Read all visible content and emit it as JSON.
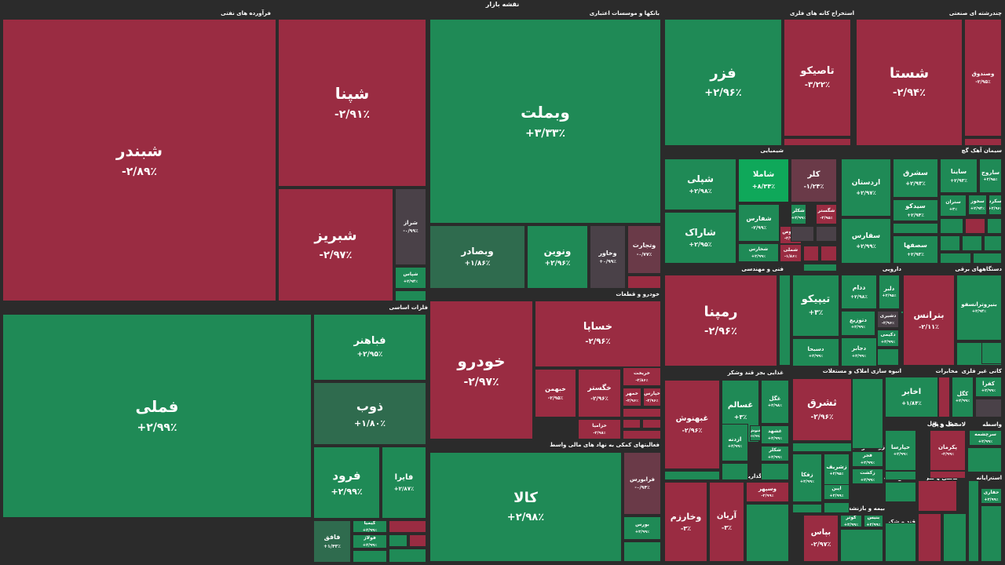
{
  "title": "نقشه بازار",
  "colors": {
    "red": "#9a2c42",
    "red_dark": "#7e2a3e",
    "red_muted": "#6a3a48",
    "green": "#1f8a56",
    "green_bright": "#0fa85a",
    "green_dark": "#2f6b4e",
    "neutral": "#4a4148",
    "separator": "#2b2b2b"
  },
  "sectors": [
    {
      "label": "فرآورده های نفتی"
    },
    {
      "label": "بانکها و موسسات اعتباری"
    },
    {
      "label": "استخراج کانه های فلزی"
    },
    {
      "label": "چندرشته ای صنعتی"
    },
    {
      "label": "شیمیایی"
    },
    {
      "label": "سیمان آهک گچ"
    },
    {
      "label": "فلزات اساسی"
    },
    {
      "label": "خودرو و قطعات"
    },
    {
      "label": "فنی و مهندسی"
    },
    {
      "label": "دارویی"
    },
    {
      "label": "دستگاههای برقی"
    },
    {
      "label": "غذایی بجز قند وشکر"
    },
    {
      "label": "انبوه سازی املاک و مستغلات"
    },
    {
      "label": "مخابرات"
    },
    {
      "label": "کانی غیر فلزی"
    },
    {
      "label": "فعالیتهای کمکی به نهاد های مالی واسط"
    },
    {
      "label": "سرمایه گذاریها"
    },
    {
      "label": "زراعت و خدمات وابسته"
    },
    {
      "label": "حمل و نقل"
    },
    {
      "label": "لاستیک و پل"
    },
    {
      "label": "واسطه"
    },
    {
      "label": "بیمه و بازنشستگی"
    },
    {
      "label": "ماشین آلات"
    },
    {
      "label": "کاشی و سر"
    },
    {
      "label": "رایانه"
    },
    {
      "label": "استخراج"
    },
    {
      "label": "قند و شکر"
    }
  ],
  "tiles": [
    {
      "name": "شبندر",
      "pct": "-۲/۸۹٪"
    },
    {
      "name": "شپنا",
      "pct": "-۲/۹۱٪"
    },
    {
      "name": "شبریز",
      "pct": "-۲/۹۷٪"
    },
    {
      "name": "شراز",
      "pct": "-۰/۹۹٪"
    },
    {
      "name": "شپاس",
      "pct": "+۲/۹۴٪"
    },
    {
      "name": "وبملت",
      "pct": "+۳/۳۳٪"
    },
    {
      "name": "وبصادر",
      "pct": "+۱/۸۶٪"
    },
    {
      "name": "ونوین",
      "pct": "+۲/۹۶٪"
    },
    {
      "name": "وخاور",
      "pct": "+۰/۹۹٪"
    },
    {
      "name": "وتجارت",
      "pct": "-۰/۷۷٪"
    },
    {
      "name": "فزر",
      "pct": "+۲/۹۶٪"
    },
    {
      "name": "تاصیکو",
      "pct": "-۳/۲۲٪"
    },
    {
      "name": "شستا",
      "pct": "-۲/۹۴٪"
    },
    {
      "name": "وصندوق",
      "pct": "-۲/۹۵٪"
    },
    {
      "name": "شپلی",
      "pct": "+۲/۹۸٪"
    },
    {
      "name": "شاملا",
      "pct": "+۸/۳۴٪"
    },
    {
      "name": "کلر",
      "pct": "-۱/۲۴٪"
    },
    {
      "name": "شاراک",
      "pct": "+۲/۹۵٪"
    },
    {
      "name": "شفارس",
      "pct": "-۲/۹۹٪"
    },
    {
      "name": "شکلر",
      "pct": "+۲/۹۹٪"
    },
    {
      "name": "شگستر",
      "pct": "-۲/۹۵٪"
    },
    {
      "name": "شدوص",
      "pct": "-۲/۹۹٪"
    },
    {
      "name": "شخارس",
      "pct": "+۲/۹۹٪"
    },
    {
      "name": "شملی",
      "pct": "-۱/۸۶٪"
    },
    {
      "name": "اردستان",
      "pct": "+۲/۹۷٪"
    },
    {
      "name": "سشرق",
      "pct": "+۲/۹۳٪"
    },
    {
      "name": "ساینا",
      "pct": "+۲/۹۳٪"
    },
    {
      "name": "ساروج",
      "pct": "+۲/۹۵٪"
    },
    {
      "name": "ستران",
      "pct": "+۳٪"
    },
    {
      "name": "سخوز",
      "pct": "+۲/۹۴٪"
    },
    {
      "name": "سکرد",
      "pct": "+۲/۹۶٪"
    },
    {
      "name": "سفارس",
      "pct": "+۲/۹۹٪"
    },
    {
      "name": "سیدکو",
      "pct": "+۲/۹۴٪"
    },
    {
      "name": "سصفها",
      "pct": "+۲/۹۳٪"
    },
    {
      "name": "فملی",
      "pct": "+۲/۹۹٪"
    },
    {
      "name": "فباهنر",
      "pct": "+۲/۹۵٪"
    },
    {
      "name": "ذوب",
      "pct": "+۱/۸۰٪"
    },
    {
      "name": "فرود",
      "pct": "+۲/۹۹٪"
    },
    {
      "name": "فایرا",
      "pct": "+۲/۸۷٪"
    },
    {
      "name": "فافق",
      "pct": "+۱/۴۳٪"
    },
    {
      "name": "خودرو",
      "pct": "-۲/۹۷٪"
    },
    {
      "name": "خساپا",
      "pct": "-۲/۹۶٪"
    },
    {
      "name": "خبهمن",
      "pct": "-۲/۹۵٪"
    },
    {
      "name": "خگستر",
      "pct": "-۲/۹۶٪"
    },
    {
      "name": "خزامیا",
      "pct": "-۲/۹۸٪"
    },
    {
      "name": "خمهر",
      "pct": "-۲/۹۶٪"
    },
    {
      "name": "خپارس",
      "pct": "-۲/۹۶٪"
    },
    {
      "name": "خریخت",
      "pct": "-۲/۸۶٪"
    },
    {
      "name": "رمپنا",
      "pct": "-۲/۹۶٪"
    },
    {
      "name": "تیپیکو",
      "pct": "+۳٪"
    },
    {
      "name": "ددام",
      "pct": "+۲/۹۸٪"
    },
    {
      "name": "دلبر",
      "pct": "+۲/۹۵٪"
    },
    {
      "name": "دشیری",
      "pct": "-۲/۹۶٪"
    },
    {
      "name": "دتوزیع",
      "pct": "+۲/۹۹٪"
    },
    {
      "name": "دکیمی",
      "pct": "+۲/۹۹٪"
    },
    {
      "name": "دسبحا",
      "pct": "+۲/۹۹٪"
    },
    {
      "name": "دجابر",
      "pct": "+۲/۹۹٪"
    },
    {
      "name": "بترانس",
      "pct": "-۲/۱۱٪"
    },
    {
      "name": "بنیروترانسفو",
      "pct": "+۲/۹۴٪"
    },
    {
      "name": "بموتو",
      "pct": "-۲/۹۹٪"
    },
    {
      "name": "غبهنوش",
      "pct": "-۲/۹۶٪"
    },
    {
      "name": "غسالم",
      "pct": "+۳٪"
    },
    {
      "name": "غگل",
      "pct": "+۲/۹۸٪"
    },
    {
      "name": "ثشرق",
      "pct": "-۲/۹۶٪"
    },
    {
      "name": "اخابر",
      "pct": "+۱/۸۴٪"
    },
    {
      "name": "کالا",
      "pct": "+۲/۹۸٪"
    },
    {
      "name": "فرابورس",
      "pct": "-۰/۹۴٪"
    },
    {
      "name": "بورس",
      "pct": "+۲/۹۹٪"
    },
    {
      "name": "وخارزم",
      "pct": "-۳٪"
    },
    {
      "name": "آریان",
      "pct": "-۳٪"
    },
    {
      "name": "وسپهر",
      "pct": "-۲/۹۹٪"
    },
    {
      "name": "زفکا",
      "pct": "+۲/۹۹٪"
    },
    {
      "name": "زشریف",
      "pct": "+۲/۹۵٪"
    },
    {
      "name": "بپاس",
      "pct": "-۲/۹۷٪"
    },
    {
      "name": "حپارسا",
      "pct": "+۲/۹۹٪"
    },
    {
      "name": "پکرمان",
      "pct": "-۲/۹۹٪"
    },
    {
      "name": "کگل",
      "pct": "+۲/۹۹٪"
    },
    {
      "name": "کفرا",
      "pct": "+۲/۹۹٪"
    },
    {
      "name": "غشهد",
      "pct": "+۲/۹۹٪"
    },
    {
      "name": "غنوش",
      "pct": "+۲/۹۹٪"
    },
    {
      "name": "ازدنه",
      "pct": "+۲/۹۹٪"
    },
    {
      "name": "شکلر",
      "pct": "+۲/۹۹٪"
    },
    {
      "name": "کیمیا",
      "pct": "+۲/۹۹٪"
    },
    {
      "name": "فولاژ",
      "pct": "+۲/۹۹٪"
    },
    {
      "name": "فجر",
      "pct": "+۲/۹۹٪"
    },
    {
      "name": "زکشت",
      "pct": "+۲/۹۹٪"
    },
    {
      "name": "اپین",
      "pct": "+۲/۹۹٪"
    },
    {
      "name": "کوثر",
      "pct": "+۲/۹۹٪"
    },
    {
      "name": "بنیس",
      "pct": "+۲/۹۹٪"
    },
    {
      "name": "حفاری",
      "pct": "+۲/۹۹٪"
    },
    {
      "name": "سرچشمه",
      "pct": "+۲/۹۹٪"
    }
  ]
}
